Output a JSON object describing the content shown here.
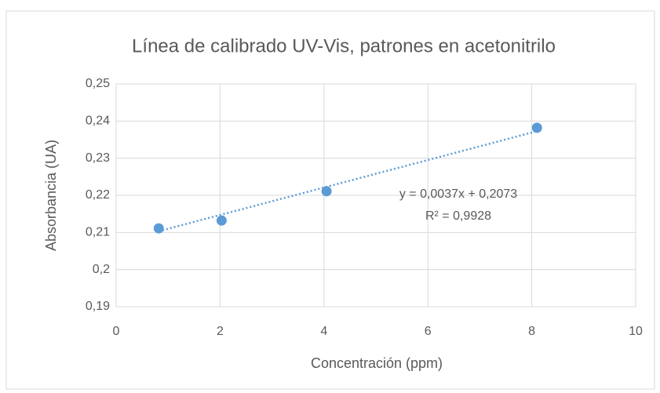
{
  "chart_data": {
    "type": "scatter",
    "title": "Línea de calibrado UV-Vis, patrones en acetonitrilo",
    "x_label": "Concentración (ppm)",
    "y_label": "Absorbancia (UA)",
    "series": [
      {
        "color": "#5b9bd5",
        "x": [
          0.82,
          2.03,
          4.05,
          8.1
        ],
        "values": [
          0.2111,
          0.2132,
          0.2211,
          0.2382
        ]
      }
    ],
    "trendline": {
      "slope": 0.0037,
      "intercept": 0.2073,
      "color": "#5b9bd5",
      "equation": "y = 0,0037x + 0,2073",
      "r2": "R² = 0,9928"
    },
    "xlim": [
      0,
      10
    ],
    "xticks": [
      0,
      2,
      4,
      6,
      8,
      10
    ],
    "ylim": [
      0.19,
      0.25
    ],
    "yticks": [
      {
        "value": 0.19,
        "label": "0,19"
      },
      {
        "value": 0.2,
        "label": "0,2"
      },
      {
        "value": 0.21,
        "label": "0,21"
      },
      {
        "value": 0.22,
        "label": "0,22"
      },
      {
        "value": 0.23,
        "label": "0,23"
      },
      {
        "value": 0.24,
        "label": "0,24"
      },
      {
        "value": 0.25,
        "label": "0,25"
      }
    ],
    "grid": true
  }
}
